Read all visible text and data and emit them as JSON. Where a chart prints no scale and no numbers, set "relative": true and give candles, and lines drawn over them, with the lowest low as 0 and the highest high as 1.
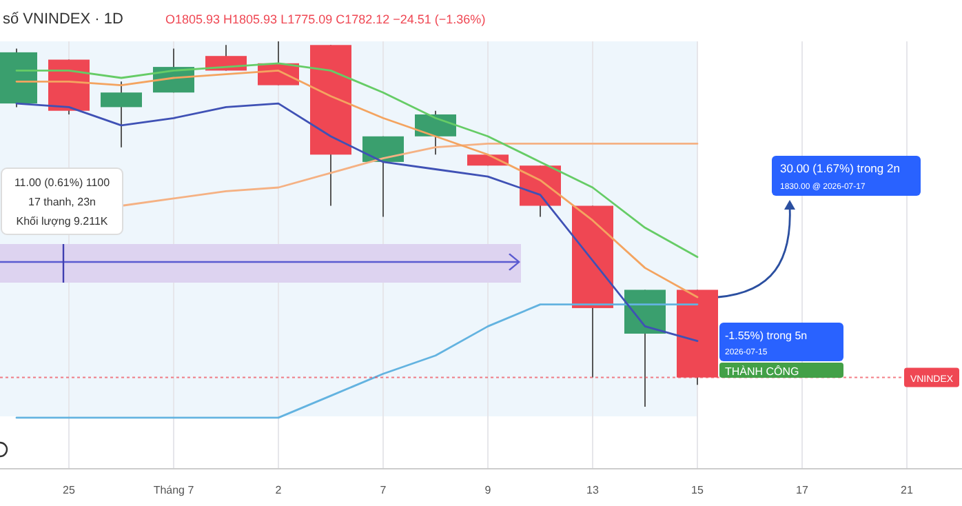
{
  "chart_data": {
    "type": "candlestick",
    "title": "số VNINDEX · 1D",
    "subtitle": "O1805.93 H1805.93 L1775.09 C1782.12 −24.51 (−1.36%)",
    "relative": true,
    "grid": "x",
    "categories": [
      null,
      "25",
      null,
      "Tháng 7",
      null,
      "2",
      null,
      "7",
      null,
      "9",
      null,
      "13",
      null,
      "15",
      null,
      "17",
      null,
      "21"
    ],
    "ohlc": [
      [
        0.83,
        0.98,
        0.82,
        0.97
      ],
      [
        0.95,
        0.95,
        0.8,
        0.81
      ],
      [
        0.82,
        0.89,
        0.71,
        0.86
      ],
      [
        0.86,
        0.98,
        0.86,
        0.93
      ],
      [
        0.96,
        0.99,
        0.92,
        0.92
      ],
      [
        0.94,
        1,
        0.88,
        0.88
      ],
      [
        0.99,
        0.99,
        0.55,
        0.69
      ],
      [
        0.67,
        0.74,
        0.52,
        0.74
      ],
      [
        0.74,
        0.81,
        0.69,
        0.8
      ],
      [
        0.69,
        0.69,
        0.66,
        0.66
      ],
      [
        0.66,
        0.66,
        0.52,
        0.55
      ],
      [
        0.55,
        0.55,
        0.08,
        0.27
      ],
      [
        0.2,
        0.32,
        0,
        0.32
      ],
      [
        0.32,
        0.32,
        0.06,
        0.08
      ],
      null,
      null,
      null,
      null
    ],
    "colors": [
      "#3a9f6e",
      "#ef4753",
      "#3a9f6e",
      "#3a9f6e",
      "#ef4753",
      "#ef4753",
      "#ef4753",
      "#3a9f6e",
      "#3a9f6e",
      "#ef4753",
      "#ef4753",
      "#ef4753",
      "#3a9f6e",
      "#ef4753",
      null,
      null,
      null,
      null
    ],
    "series": [
      {
        "type": "line",
        "color": "#f5b183",
        "values": [
          null,
          null,
          0.55,
          0.57,
          0.59,
          0.6,
          0.64,
          0.68,
          0.71,
          0.72,
          0.72,
          0.72,
          0.72,
          0.72,
          null,
          null,
          null,
          null
        ]
      },
      {
        "type": "line",
        "color": "#63b3e0",
        "values": [
          -0.03,
          -0.03,
          -0.03,
          -0.03,
          -0.03,
          -0.03,
          0.03,
          0.09,
          0.14,
          0.22,
          0.28,
          0.28,
          0.28,
          0.28,
          null,
          null,
          null,
          null
        ]
      },
      {
        "type": "line",
        "color": "#f4a460",
        "values": [
          0.89,
          0.89,
          0.88,
          0.9,
          0.91,
          0.92,
          0.85,
          0.79,
          0.74,
          0.69,
          0.62,
          0.51,
          0.38,
          0.3,
          null,
          null,
          null,
          null
        ]
      },
      {
        "type": "line",
        "color": "#66cc66",
        "values": [
          0.92,
          0.92,
          0.9,
          0.92,
          0.93,
          0.94,
          0.92,
          0.86,
          0.79,
          0.74,
          0.67,
          0.6,
          0.49,
          0.41,
          null,
          null,
          null,
          null
        ]
      },
      {
        "type": "line",
        "color": "#3f51b5",
        "values": [
          0.83,
          0.82,
          0.77,
          0.79,
          0.82,
          0.83,
          0.74,
          0.67,
          0.65,
          0.63,
          0.58,
          0.4,
          0.22,
          0.18,
          null,
          null,
          null,
          null
        ]
      }
    ],
    "ref_lines": [
      {
        "axis": "y",
        "value": 0.08,
        "label": "VNINDEX",
        "color": "#ef4753",
        "line_style": "dotted"
      }
    ],
    "annotations": [
      "11.00 (0.61%) 1100",
      "17 thanh, 23n",
      "Khối lượng 9.211K",
      "30.00 (1.67%) trong 2n",
      "1830.00 @ 2026-07-17",
      "-1.55%) trong 5n",
      "2026-07-15",
      "THÀNH CÔNG"
    ]
  }
}
